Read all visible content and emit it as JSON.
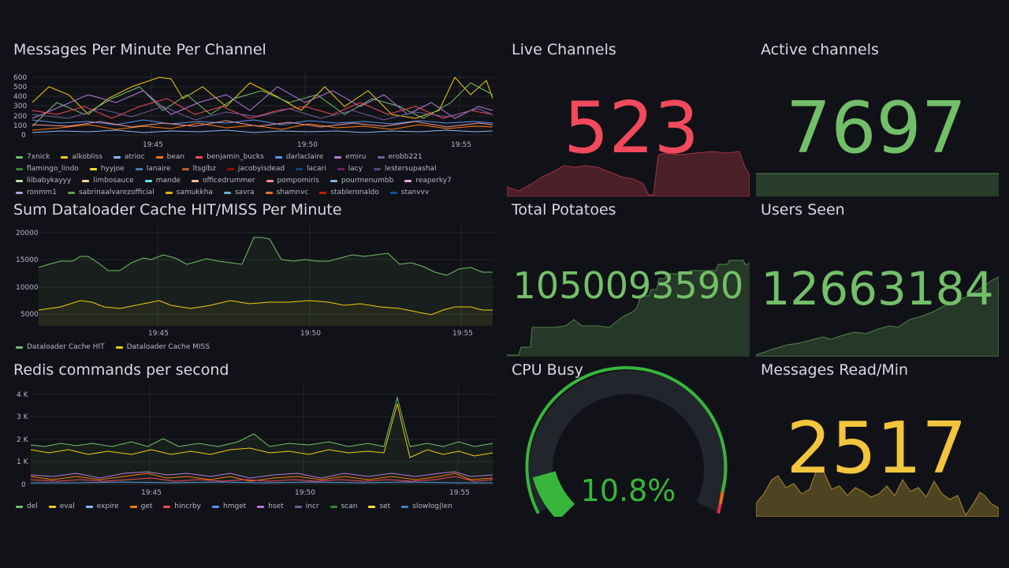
{
  "panels": {
    "messages": {
      "title": "Messages Per Minute Per Channel",
      "yticks": [
        "600",
        "500",
        "400",
        "300",
        "200",
        "100",
        "0"
      ],
      "xticks": [
        "19:45",
        "19:50",
        "19:55"
      ],
      "legend": [
        {
          "name": "7xnick",
          "color": "#73bf69"
        },
        {
          "name": "alkobliss",
          "color": "#f2cc0c"
        },
        {
          "name": "atrioc",
          "color": "#8ab8ff"
        },
        {
          "name": "bean",
          "color": "#ff780a"
        },
        {
          "name": "benjamin_bucks",
          "color": "#f2495c"
        },
        {
          "name": "darlaclaire",
          "color": "#5794f2"
        },
        {
          "name": "emiru",
          "color": "#b877d9"
        },
        {
          "name": "erobb221",
          "color": "#705da0"
        },
        {
          "name": "flamingo_lindo",
          "color": "#37872d"
        },
        {
          "name": "hyyjoe",
          "color": "#fade2a"
        },
        {
          "name": "lanaire",
          "color": "#447ebc"
        },
        {
          "name": "ltsglbz",
          "color": "#c15c17"
        },
        {
          "name": "jacobyisdead",
          "color": "#890f02"
        },
        {
          "name": "lacari",
          "color": "#0a437c"
        },
        {
          "name": "lacy",
          "color": "#6d1f62"
        },
        {
          "name": "lestersupashal",
          "color": "#584477"
        },
        {
          "name": "lilbabykayyy",
          "color": "#b7dbab"
        },
        {
          "name": "limbosauce",
          "color": "#f4d598"
        },
        {
          "name": "mande",
          "color": "#70dbed"
        },
        {
          "name": "officedrummer",
          "color": "#f9ba8f"
        },
        {
          "name": "pompomiris",
          "color": "#f29191"
        },
        {
          "name": "pourmenumbb",
          "color": "#82b5d8"
        },
        {
          "name": "reaperky7",
          "color": "#e5a8e2"
        },
        {
          "name": "ronmm1",
          "color": "#aea2e0"
        },
        {
          "name": "sabrinaalvarezofficial",
          "color": "#629e51"
        },
        {
          "name": "samukkha",
          "color": "#e5ac0e"
        },
        {
          "name": "sayra",
          "color": "#64b0c8"
        },
        {
          "name": "shamnyc",
          "color": "#e0752d"
        },
        {
          "name": "stableronaldo",
          "color": "#bf1b00"
        },
        {
          "name": "stanyyy",
          "color": "#0a50a1"
        }
      ]
    },
    "dataloader": {
      "title": "Sum Dataloader Cache HIT/MISS Per Minute",
      "yticks": [
        "20000",
        "15000",
        "10000",
        "5000"
      ],
      "xticks": [
        "19:45",
        "19:50",
        "19:55"
      ],
      "legend": [
        {
          "name": "Dataloader Cache HIT",
          "color": "#73bf69"
        },
        {
          "name": "Dataloader Cache MISS",
          "color": "#f2cc0c"
        }
      ]
    },
    "redis": {
      "title": "Redis commands per second",
      "yticks": [
        "4 K",
        "3 K",
        "2 K",
        "1 K",
        "0"
      ],
      "xticks": [
        "19:45",
        "19:50",
        "19:55"
      ],
      "legend": [
        {
          "name": "del",
          "color": "#73bf69"
        },
        {
          "name": "eval",
          "color": "#f2cc0c"
        },
        {
          "name": "expire",
          "color": "#8ab8ff"
        },
        {
          "name": "get",
          "color": "#ff780a"
        },
        {
          "name": "hincrby",
          "color": "#f2495c"
        },
        {
          "name": "hmget",
          "color": "#5794f2"
        },
        {
          "name": "hset",
          "color": "#b877d9"
        },
        {
          "name": "incr",
          "color": "#705da0"
        },
        {
          "name": "scan",
          "color": "#37872d"
        },
        {
          "name": "set",
          "color": "#fade2a"
        },
        {
          "name": "slowlog|len",
          "color": "#447ebc"
        }
      ]
    },
    "live_channels": {
      "title": "Live Channels",
      "value": "523",
      "color": "#f2495c"
    },
    "active_channels": {
      "title": "Active channels",
      "value": "7697",
      "color": "#73bf69"
    },
    "total_potatoes": {
      "title": "Total Potatoes",
      "value": "1050093590",
      "color": "#73bf69"
    },
    "users_seen": {
      "title": "Users Seen",
      "value": "12663184",
      "color": "#73bf69"
    },
    "cpu_busy": {
      "title": "CPU Busy",
      "value": "10.8%",
      "percent": 10.8,
      "color": "#37b63b"
    },
    "messages_read": {
      "title": "Messages Read/Min",
      "value": "2517",
      "color": "#f2c53c"
    }
  }
}
